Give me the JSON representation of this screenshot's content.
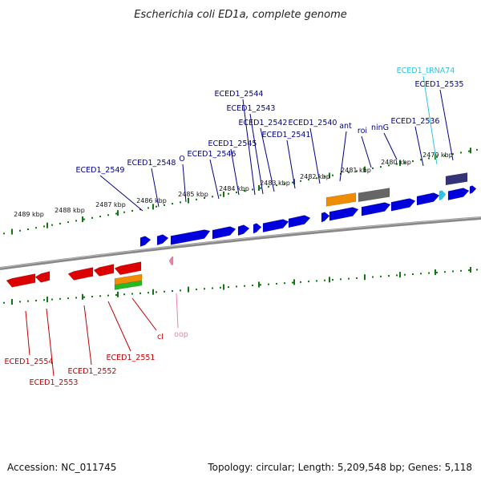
{
  "title": "Escherichia coli ED1a, complete genome",
  "footer": {
    "accession_label": "Accession: NC_011745",
    "summary_label": "Topology: circular; Length: 5,209,548 bp; Genes: 5,118"
  },
  "colors": {
    "forward_gene": "#0000dd",
    "reverse_gene": "#dd0000",
    "trna": "#2ec4e6",
    "noncoding": "#f07fb0",
    "misc_orange": "#f08c00",
    "misc_green": "#22bb22",
    "misc_gray": "#666666",
    "misc_navy": "#333377",
    "tick_green": "#117711",
    "backbone": "#888888"
  },
  "axis": {
    "unit": "kbp",
    "ticks": [
      "2489 kbp",
      "2488 kbp",
      "2487 kbp",
      "2486 kbp",
      "2485 kbp",
      "2484 kbp",
      "2483 kbp",
      "2482 kbp",
      "2481 kbp",
      "2480 kbp",
      "2479 kbp"
    ]
  },
  "top_labels": [
    {
      "text": "ECED1_tRNA74",
      "kind": "trna"
    },
    {
      "text": "ECED1_2535",
      "kind": "gene"
    },
    {
      "text": "ECED1_2536",
      "kind": "gene"
    },
    {
      "text": "ninG",
      "kind": "gene"
    },
    {
      "text": "roi",
      "kind": "gene"
    },
    {
      "text": "ant",
      "kind": "gene"
    },
    {
      "text": "ECED1_2540",
      "kind": "gene"
    },
    {
      "text": "ECED1_2541",
      "kind": "gene"
    },
    {
      "text": "ECED1_2542",
      "kind": "gene"
    },
    {
      "text": "ECED1_2543",
      "kind": "gene"
    },
    {
      "text": "ECED1_2544",
      "kind": "gene"
    },
    {
      "text": "ECED1_2545",
      "kind": "gene"
    },
    {
      "text": "ECED1_2546",
      "kind": "gene"
    },
    {
      "text": "O",
      "kind": "gene"
    },
    {
      "text": "ECED1_2548",
      "kind": "gene"
    },
    {
      "text": "ECED1_2549",
      "kind": "gene"
    }
  ],
  "bottom_labels": [
    {
      "text": "ECED1_2554",
      "kind": "gene"
    },
    {
      "text": "ECED1_2553",
      "kind": "gene"
    },
    {
      "text": "ECED1_2552",
      "kind": "gene"
    },
    {
      "text": "ECED1_2551",
      "kind": "gene"
    },
    {
      "text": "cI",
      "kind": "gene"
    },
    {
      "text": "oop",
      "kind": "noncoding"
    }
  ]
}
